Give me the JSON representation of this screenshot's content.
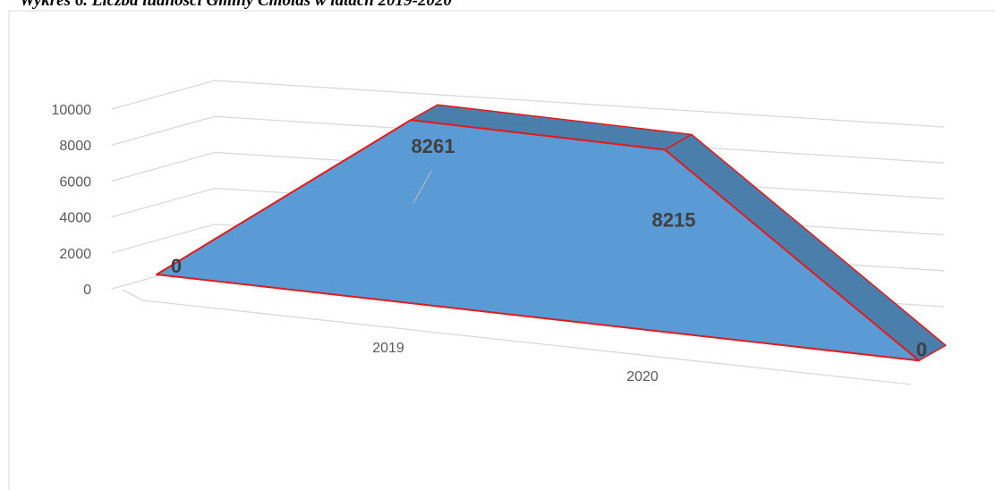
{
  "chart_data": {
    "type": "area3d",
    "title": "Wykres 6. Liczba ludności Gminy Cmolas w latach 2019-2020",
    "categories": [
      null,
      "2019",
      "2020",
      null
    ],
    "values": [
      0,
      8261,
      8215,
      0
    ],
    "color": "#5b9bd5",
    "edge_color": "#e31a1c",
    "ylim": [
      0,
      10000
    ],
    "yticks": [
      0,
      2000,
      4000,
      6000,
      8000,
      10000
    ],
    "grid": true
  }
}
